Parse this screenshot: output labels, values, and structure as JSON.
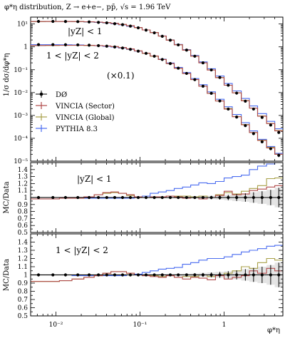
{
  "chart_data": {
    "type": "line",
    "title": "φ*η distribution, Z → e+e−, pp̄, √s = 1.96 TeV",
    "xlabel": "φ*η",
    "x_scale": "log",
    "xlim": [
      0.005,
      5
    ],
    "x_ticks": [
      {
        "value": 0.01,
        "label": "10⁻²"
      },
      {
        "value": 0.1,
        "label": "10⁻¹"
      },
      {
        "value": 1,
        "label": "1"
      }
    ],
    "x": [
      0.005,
      0.0075,
      0.011,
      0.0155,
      0.0215,
      0.0285,
      0.036,
      0.045,
      0.0555,
      0.069,
      0.0855,
      0.106,
      0.132,
      0.165,
      0.205,
      0.255,
      0.32,
      0.4,
      0.5,
      0.63,
      0.79,
      1.0,
      1.25,
      1.6,
      2.0,
      2.5,
      3.2,
      4.0,
      5.0
    ],
    "bin_centers": [
      0.0062,
      0.0092,
      0.013,
      0.0182,
      0.0248,
      0.032,
      0.0402,
      0.05,
      0.062,
      0.0768,
      0.0952,
      0.118,
      0.148,
      0.184,
      0.229,
      0.285,
      0.358,
      0.448,
      0.561,
      0.705,
      0.889,
      1.12,
      1.41,
      1.79,
      2.24,
      2.83,
      3.58,
      4.47
    ],
    "panels": [
      {
        "name": "main",
        "ylabel": "1/σ dσ/dφ*η",
        "y_scale": "log",
        "ylim": [
          1e-05,
          20
        ],
        "y_ticks": [
          {
            "value": 1e-05,
            "label": "10⁻⁵"
          },
          {
            "value": 0.0001,
            "label": "10⁻⁴"
          },
          {
            "value": 0.001,
            "label": "10⁻³"
          },
          {
            "value": 0.01,
            "label": "10⁻²"
          },
          {
            "value": 0.1,
            "label": "10⁻¹"
          },
          {
            "value": 1,
            "label": "1"
          },
          {
            "value": 10,
            "label": "10¹"
          }
        ],
        "annotations": [
          "|yZ| < 1",
          "1 < |yZ| < 2",
          "(×0.1)"
        ],
        "legend_position": "left-middle",
        "series_sets": [
          {
            "region": "|yZ| < 1",
            "data": [
              13.0,
              13.0,
              12.9,
              12.7,
              12.3,
              11.8,
              11.2,
              10.3,
              9.3,
              8.1,
              6.8,
              5.4,
              4.1,
              2.9,
              1.95,
              1.22,
              0.72,
              0.39,
              0.2,
              0.098,
              0.046,
              0.021,
              0.0095,
              0.0042,
              0.0019,
              0.00082,
              0.00038,
              0.00018
            ],
            "data_err": [
              0.3,
              0.3,
              0.3,
              0.3,
              0.25,
              0.25,
              0.22,
              0.2,
              0.18,
              0.16,
              0.13,
              0.1,
              0.08,
              0.06,
              0.04,
              0.025,
              0.015,
              0.008,
              0.004,
              0.002,
              0.001,
              0.0005,
              0.0003,
              0.00015,
              8e-05,
              5e-05,
              3e-05,
              2e-05
            ],
            "sector": [
              12.8,
              12.9,
              12.9,
              12.8,
              12.5,
              12.1,
              11.5,
              10.7,
              9.6,
              8.4,
              7.0,
              5.5,
              4.2,
              2.95,
              1.97,
              1.23,
              0.72,
              0.39,
              0.2,
              0.097,
              0.045,
              0.021,
              0.0097,
              0.0044,
              0.0021,
              0.00093,
              0.00044,
              0.00021
            ],
            "global": [
              12.7,
              12.8,
              12.8,
              12.7,
              12.4,
              12.0,
              11.4,
              10.6,
              9.5,
              8.3,
              6.9,
              5.5,
              4.2,
              2.95,
              1.98,
              1.24,
              0.73,
              0.4,
              0.2,
              0.098,
              0.046,
              0.021,
              0.0098,
              0.0045,
              0.0021,
              0.00095,
              0.00045,
              0.00022
            ],
            "pythia": [
              12.9,
              12.9,
              12.8,
              12.6,
              12.2,
              11.7,
              11.1,
              10.2,
              9.2,
              8.0,
              6.8,
              5.5,
              4.2,
              3.0,
              2.02,
              1.28,
              0.76,
              0.42,
              0.22,
              0.11,
              0.053,
              0.025,
              0.0118,
              0.0055,
              0.0026,
              0.0012,
              0.00055,
              0.00026
            ]
          },
          {
            "region": "1 < |yZ| < 2",
            "data": [
              1.25,
              1.25,
              1.24,
              1.22,
              1.18,
              1.13,
              1.07,
              0.99,
              0.89,
              0.78,
              0.65,
              0.52,
              0.39,
              0.28,
              0.186,
              0.117,
              0.069,
              0.037,
              0.019,
              0.0093,
              0.0043,
              0.0019,
              0.00085,
              0.00036,
              0.00016,
              7e-05,
              3.5e-05,
              1.8e-05
            ],
            "data_err": [
              0.03,
              0.03,
              0.03,
              0.03,
              0.025,
              0.025,
              0.022,
              0.02,
              0.018,
              0.015,
              0.013,
              0.01,
              0.008,
              0.006,
              0.004,
              0.0025,
              0.0015,
              0.0008,
              0.0004,
              0.0002,
              0.0001,
              5e-05,
              3e-05,
              1.5e-05,
              8e-06,
              5e-06,
              3e-06,
              3e-06
            ],
            "sector": [
              1.15,
              1.16,
              1.17,
              1.17,
              1.16,
              1.14,
              1.1,
              1.03,
              0.93,
              0.81,
              0.67,
              0.53,
              0.4,
              0.28,
              0.186,
              0.116,
              0.068,
              0.037,
              0.019,
              0.0092,
              0.0043,
              0.0019,
              0.00088,
              0.00039,
              0.00018,
              8e-05,
              3.8e-05,
              2e-05
            ],
            "global": [
              1.14,
              1.15,
              1.16,
              1.16,
              1.15,
              1.13,
              1.09,
              1.02,
              0.92,
              0.8,
              0.66,
              0.52,
              0.39,
              0.28,
              0.185,
              0.116,
              0.068,
              0.037,
              0.019,
              0.0093,
              0.0043,
              0.002,
              0.0009,
              0.0004,
              0.00018,
              8.3e-05,
              4e-05,
              2e-05
            ],
            "pythia": [
              1.24,
              1.24,
              1.23,
              1.21,
              1.17,
              1.12,
              1.06,
              0.98,
              0.88,
              0.77,
              0.65,
              0.52,
              0.4,
              0.29,
              0.197,
              0.126,
              0.075,
              0.041,
              0.022,
              0.0108,
              0.0051,
              0.0024,
              0.0011,
              0.00048,
              0.00021,
              9e-05,
              4.4e-05,
              2.2e-05
            ]
          }
        ]
      },
      {
        "name": "ratio-central",
        "ylabel": "MC/Data",
        "annotation": "|yZ| < 1",
        "ylim": [
          0.5,
          1.5
        ],
        "y_ticks": [
          0.5,
          0.6,
          0.7,
          0.8,
          0.9,
          1,
          1.1,
          1.2,
          1.3,
          1.4
        ],
        "data_err": [
          0.012,
          0.012,
          0.012,
          0.012,
          0.012,
          0.012,
          0.012,
          0.012,
          0.012,
          0.012,
          0.012,
          0.012,
          0.012,
          0.012,
          0.013,
          0.014,
          0.015,
          0.017,
          0.02,
          0.024,
          0.03,
          0.038,
          0.05,
          0.06,
          0.075,
          0.09,
          0.11,
          0.14
        ],
        "sector": [
          0.98,
          0.98,
          0.99,
          0.99,
          1.01,
          1.04,
          1.07,
          1.08,
          1.06,
          1.04,
          1.01,
          1.0,
          1.01,
          1.01,
          1.02,
          1.01,
          0.99,
          1.0,
          0.98,
          1.0,
          1.03,
          1.09,
          1.04,
          1.05,
          1.1,
          1.12,
          1.15,
          1.17
        ],
        "global": [
          0.98,
          0.98,
          0.99,
          0.99,
          1.01,
          1.04,
          1.06,
          1.07,
          1.06,
          1.03,
          1.01,
          1.0,
          1.01,
          1.01,
          1.02,
          1.02,
          1.02,
          1.01,
          1.02,
          1.0,
          1.04,
          1.07,
          1.05,
          1.09,
          1.13,
          1.17,
          1.27,
          1.28
        ],
        "pythia": [
          1.0,
          1.0,
          1.0,
          0.99,
          0.99,
          0.99,
          0.99,
          0.99,
          0.99,
          0.99,
          1.0,
          1.02,
          1.06,
          1.08,
          1.1,
          1.13,
          1.15,
          1.18,
          1.21,
          1.2,
          1.23,
          1.28,
          1.3,
          1.32,
          1.4,
          1.45,
          1.48,
          1.5
        ]
      },
      {
        "name": "ratio-forward",
        "ylabel": "MC/Data",
        "annotation": "1 < |yZ| < 2",
        "ylim": [
          0.5,
          1.5
        ],
        "y_ticks": [
          0.5,
          0.6,
          0.7,
          0.8,
          0.9,
          1,
          1.1,
          1.2,
          1.3,
          1.4
        ],
        "data_err": [
          0.012,
          0.012,
          0.012,
          0.012,
          0.012,
          0.012,
          0.012,
          0.012,
          0.012,
          0.012,
          0.012,
          0.013,
          0.013,
          0.014,
          0.015,
          0.016,
          0.018,
          0.02,
          0.024,
          0.03,
          0.036,
          0.045,
          0.055,
          0.07,
          0.085,
          0.1,
          0.12,
          0.15
        ],
        "sector": [
          0.92,
          0.92,
          0.93,
          0.95,
          0.97,
          0.99,
          1.02,
          1.04,
          1.04,
          1.02,
          1.0,
          0.99,
          0.98,
          0.97,
          0.99,
          0.97,
          0.95,
          0.97,
          0.96,
          0.94,
          0.99,
          0.95,
          0.97,
          0.99,
          1.05,
          1.02,
          1.08,
          1.05
        ],
        "global": [
          0.92,
          0.92,
          0.93,
          0.95,
          0.97,
          0.99,
          1.02,
          1.04,
          1.04,
          1.02,
          1.0,
          0.99,
          0.99,
          0.98,
          0.99,
          0.97,
          0.98,
          0.98,
          1.0,
          0.98,
          1.0,
          1.02,
          1.05,
          1.1,
          1.08,
          1.15,
          1.2,
          1.18
        ],
        "pythia": [
          1.0,
          1.0,
          1.0,
          0.99,
          0.99,
          0.99,
          0.99,
          0.99,
          0.99,
          1.0,
          1.01,
          1.03,
          1.05,
          1.07,
          1.08,
          1.09,
          1.13,
          1.15,
          1.18,
          1.2,
          1.2,
          1.22,
          1.25,
          1.28,
          1.3,
          1.32,
          1.35,
          1.36
        ]
      }
    ],
    "legend": [
      {
        "key": "data",
        "label": "DØ",
        "color": "#000000",
        "style": "points"
      },
      {
        "key": "sector",
        "label": "VINCIA (Sector)",
        "color": "#b04a4a",
        "style": "line"
      },
      {
        "key": "global",
        "label": "VINCIA (Global)",
        "color": "#a8a048",
        "style": "line"
      },
      {
        "key": "pythia",
        "label": "PYTHIA 8.3",
        "color": "#4a6cf0",
        "style": "line"
      }
    ]
  }
}
